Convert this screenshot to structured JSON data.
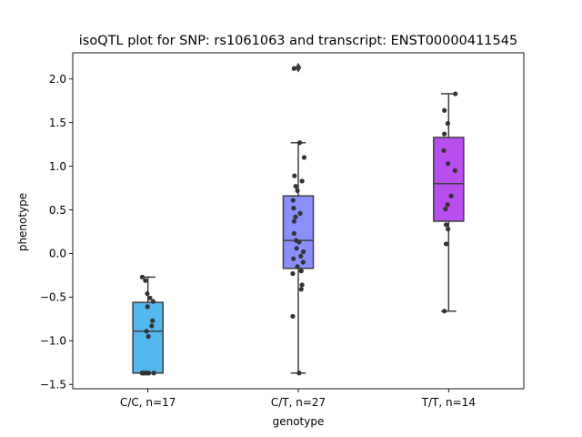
{
  "chart_data": {
    "type": "box",
    "title": "isoQTL plot for SNP: rs1061063 and transcript: ENST00000411545",
    "xlabel": "genotype",
    "ylabel": "phenotype",
    "ylim": [
      -1.55,
      2.3
    ],
    "yticks": [
      -1.5,
      -1.0,
      -0.5,
      0.0,
      0.5,
      1.0,
      1.5,
      2.0
    ],
    "ytick_labels": [
      "−1.5",
      "−1.0",
      "−0.5",
      "0.0",
      "0.5",
      "1.0",
      "1.5",
      "2.0"
    ],
    "grid": false,
    "categories": [
      "C/C, n=17",
      "C/T, n=27",
      "T/T, n=14"
    ],
    "groups": [
      {
        "label": "C/C, n=17",
        "color": "#53b8ee",
        "box": {
          "whisker_low": -1.37,
          "q1": -1.37,
          "median": -0.89,
          "q3": -0.56,
          "whisker_high": -0.27
        },
        "fliers": [],
        "points": [
          [
            -0.27,
            -0.27
          ],
          [
            -0.12,
            -0.31
          ],
          [
            -0.03,
            -0.46
          ],
          [
            0.1,
            -0.51
          ],
          [
            0.25,
            -0.55
          ],
          [
            -0.02,
            -0.61
          ],
          [
            0.22,
            -0.77
          ],
          [
            0.18,
            -0.83
          ],
          [
            -0.07,
            -0.89
          ],
          [
            0.02,
            -0.95
          ],
          [
            -0.28,
            -1.37
          ],
          [
            -0.2,
            -1.37
          ],
          [
            -0.12,
            -1.37
          ],
          [
            -0.04,
            -1.37
          ],
          [
            0.04,
            -1.37
          ],
          [
            -0.24,
            -1.37
          ],
          [
            0.28,
            -1.37
          ]
        ]
      },
      {
        "label": "C/T, n=27",
        "color": "#8a8ffb",
        "box": {
          "whisker_low": -1.37,
          "q1": -0.17,
          "median": 0.15,
          "q3": 0.66,
          "whisker_high": 1.27
        },
        "fliers": [
          2.13
        ],
        "points": [
          [
            -0.2,
            2.12
          ],
          [
            0.07,
            1.27
          ],
          [
            0.28,
            1.1
          ],
          [
            -0.18,
            0.89
          ],
          [
            0.18,
            0.83
          ],
          [
            -0.12,
            0.77
          ],
          [
            -0.04,
            0.72
          ],
          [
            -0.25,
            0.61
          ],
          [
            -0.22,
            0.52
          ],
          [
            0.09,
            0.46
          ],
          [
            -0.13,
            0.42
          ],
          [
            -0.2,
            0.37
          ],
          [
            -0.2,
            0.23
          ],
          [
            -0.1,
            0.15
          ],
          [
            0.04,
            0.13
          ],
          [
            -0.08,
            0.06
          ],
          [
            0.24,
            0.02
          ],
          [
            0.12,
            -0.03
          ],
          [
            -0.23,
            -0.06
          ],
          [
            0.23,
            -0.1
          ],
          [
            -0.04,
            -0.15
          ],
          [
            0.14,
            -0.2
          ],
          [
            -0.26,
            -0.23
          ],
          [
            0.18,
            -0.36
          ],
          [
            0.14,
            -0.41
          ],
          [
            -0.26,
            -0.72
          ],
          [
            0.04,
            -1.37
          ]
        ]
      },
      {
        "label": "T/T, n=14",
        "color": "#b84df0",
        "box": {
          "whisker_low": -0.66,
          "q1": 0.37,
          "median": 0.8,
          "q3": 1.33,
          "whisker_high": 1.83
        },
        "fliers": [],
        "points": [
          [
            0.32,
            1.83
          ],
          [
            -0.2,
            1.64
          ],
          [
            -0.04,
            1.49
          ],
          [
            -0.2,
            1.37
          ],
          [
            -0.23,
            1.18
          ],
          [
            -0.03,
            1.03
          ],
          [
            0.3,
            0.95
          ],
          [
            0.12,
            0.66
          ],
          [
            -0.05,
            0.56
          ],
          [
            -0.15,
            0.51
          ],
          [
            -0.12,
            0.33
          ],
          [
            -0.03,
            0.28
          ],
          [
            -0.12,
            0.11
          ],
          [
            -0.2,
            -0.66
          ]
        ]
      }
    ]
  }
}
